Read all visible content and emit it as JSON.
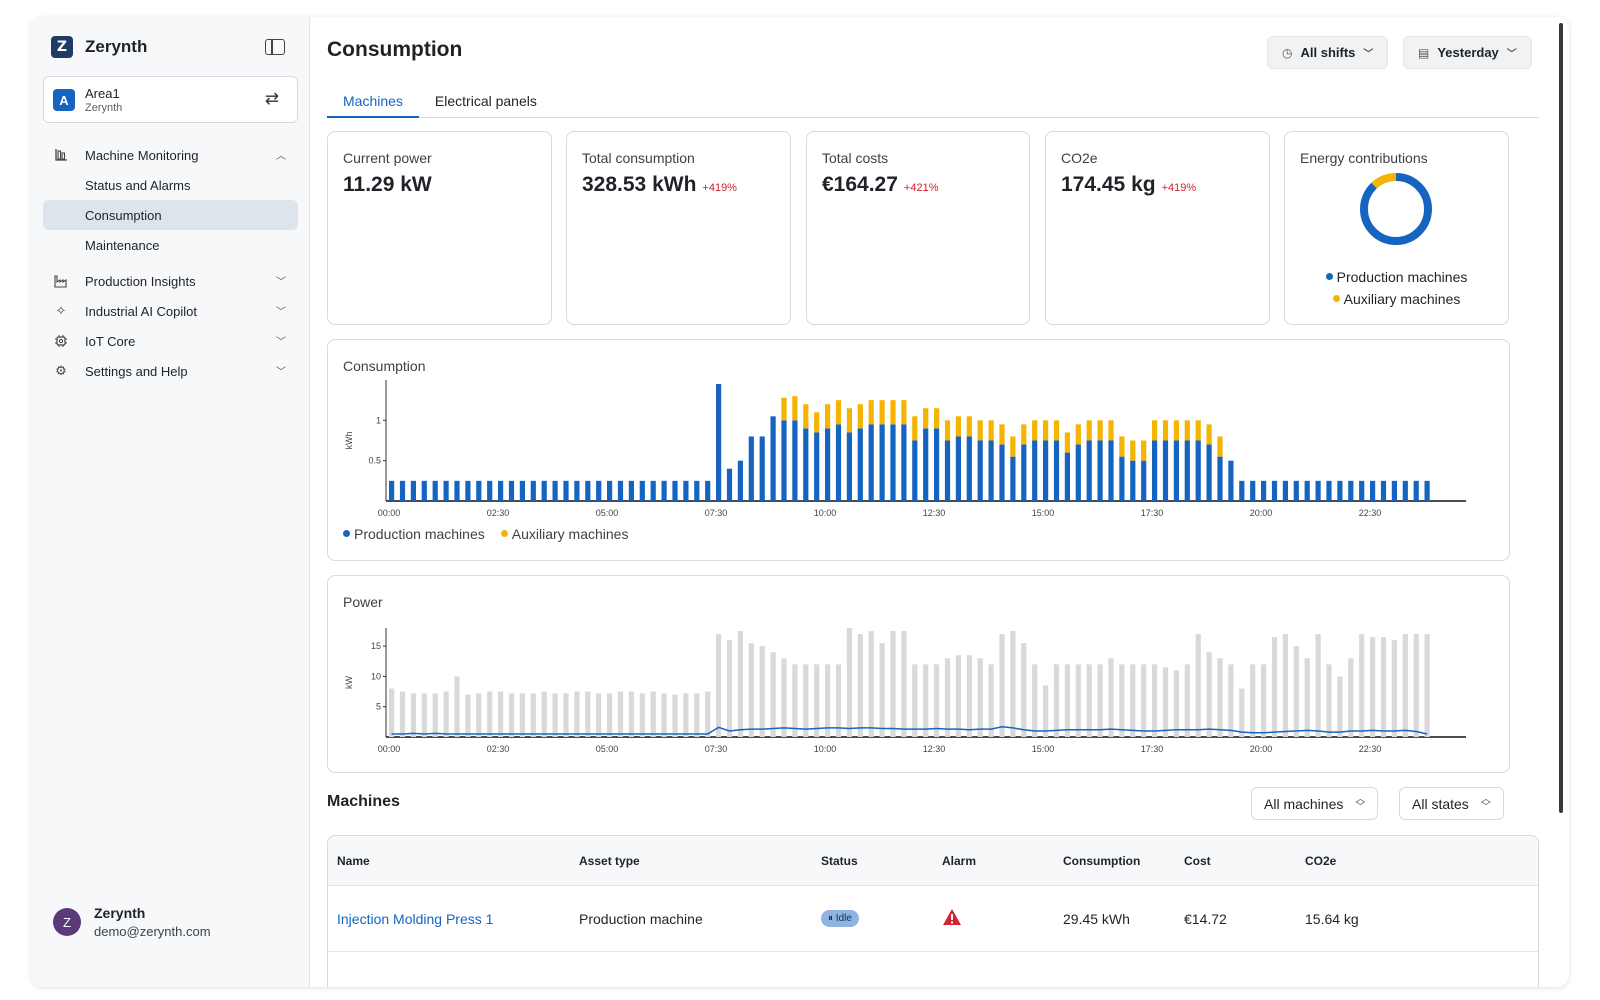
{
  "sidebar": {
    "brand": "Zerynth",
    "brand_logo_letter": "Z",
    "area": {
      "avatar": "A",
      "name": "Area1",
      "org": "Zerynth"
    },
    "nav": [
      {
        "label": "Machine Monitoring",
        "icon": "bar-chart-icon",
        "expanded": true,
        "children": [
          {
            "label": "Status and Alarms",
            "active": false
          },
          {
            "label": "Consumption",
            "active": true
          },
          {
            "label": "Maintenance",
            "active": false
          }
        ]
      },
      {
        "label": "Production Insights",
        "icon": "factory-icon",
        "expanded": false
      },
      {
        "label": "Industrial AI Copilot",
        "icon": "sparkle-icon",
        "expanded": false
      },
      {
        "label": "IoT Core",
        "icon": "chip-icon",
        "expanded": false
      },
      {
        "label": "Settings and Help",
        "icon": "gear-icon",
        "expanded": false
      }
    ],
    "user": {
      "avatar": "Z",
      "name": "Zerynth",
      "email": "demo@zerynth.com"
    }
  },
  "header": {
    "title": "Consumption",
    "shift_filter": "All shifts",
    "date_filter": "Yesterday"
  },
  "tabs": [
    {
      "label": "Machines",
      "active": true
    },
    {
      "label": "Electrical panels",
      "active": false
    }
  ],
  "kpis": {
    "current_power": {
      "label": "Current power",
      "value": "11.29 kW"
    },
    "total_consumption": {
      "label": "Total consumption",
      "value": "328.53 kWh",
      "delta": "+419%"
    },
    "total_costs": {
      "label": "Total costs",
      "value": "€164.27",
      "delta": "+421%"
    },
    "co2e": {
      "label": "CO2e",
      "value": "174.45 kg",
      "delta": "+419%"
    },
    "energy": {
      "label": "Energy contributions",
      "legend": [
        "Production machines",
        "Auxiliary machines"
      ]
    }
  },
  "colors": {
    "production": "#1565c0",
    "auxiliary": "#f4b400",
    "power_bar": "#d9d9d9",
    "delta": "#cf222e",
    "accent": "#1565c0"
  },
  "consumption_chart": {
    "title": "Consumption",
    "ylabel": "kWh",
    "yticks": [
      "1",
      "0.5"
    ],
    "xticks": [
      "00:00",
      "02:30",
      "05:00",
      "07:30",
      "10:00",
      "12:30",
      "15:00",
      "17:30",
      "20:00",
      "22:30"
    ],
    "legend": [
      "Production machines",
      "Auxiliary machines"
    ]
  },
  "power_chart": {
    "title": "Power",
    "ylabel": "kW",
    "yticks": [
      "15",
      "10",
      "5"
    ],
    "xticks": [
      "00:00",
      "02:30",
      "05:00",
      "07:30",
      "10:00",
      "12:30",
      "15:00",
      "17:30",
      "20:00",
      "22:30"
    ]
  },
  "chart_data": [
    {
      "type": "bar",
      "title": "Consumption",
      "xlabel": "",
      "ylabel": "kWh",
      "ylim": [
        0,
        1.5
      ],
      "x_start": "00:00",
      "x_interval": "15 min",
      "series": [
        {
          "name": "Production machines",
          "values": [
            0.25,
            0.25,
            0.25,
            0.25,
            0.25,
            0.25,
            0.25,
            0.25,
            0.25,
            0.25,
            0.25,
            0.25,
            0.25,
            0.25,
            0.25,
            0.25,
            0.25,
            0.25,
            0.25,
            0.25,
            0.25,
            0.25,
            0.25,
            0.25,
            0.25,
            0.25,
            0.25,
            0.25,
            0.25,
            0.25,
            1.45,
            0.4,
            0.5,
            0.8,
            0.8,
            1.05,
            1.0,
            1.0,
            0.9,
            0.85,
            0.9,
            0.95,
            0.85,
            0.9,
            0.95,
            0.95,
            0.95,
            0.95,
            0.75,
            0.9,
            0.9,
            0.75,
            0.8,
            0.8,
            0.75,
            0.75,
            0.7,
            0.55,
            0.7,
            0.75,
            0.75,
            0.75,
            0.6,
            0.7,
            0.75,
            0.75,
            0.75,
            0.55,
            0.5,
            0.5,
            0.75,
            0.75,
            0.75,
            0.75,
            0.75,
            0.7,
            0.55,
            0.5,
            0.25,
            0.25,
            0.25,
            0.25,
            0.25,
            0.25,
            0.25,
            0.25,
            0.25,
            0.25,
            0.25,
            0.25,
            0.25,
            0.25,
            0.25,
            0.25,
            0.25,
            0.25
          ]
        },
        {
          "name": "Auxiliary machines",
          "values": [
            0,
            0,
            0,
            0,
            0,
            0,
            0,
            0,
            0,
            0,
            0,
            0,
            0,
            0,
            0,
            0,
            0,
            0,
            0,
            0,
            0,
            0,
            0,
            0,
            0,
            0,
            0,
            0,
            0,
            0,
            0,
            0,
            0,
            0,
            0,
            0,
            0.28,
            0.3,
            0.3,
            0.25,
            0.3,
            0.3,
            0.3,
            0.3,
            0.3,
            0.3,
            0.3,
            0.3,
            0.3,
            0.25,
            0.25,
            0.25,
            0.25,
            0.25,
            0.25,
            0.25,
            0.25,
            0.25,
            0.25,
            0.25,
            0.25,
            0.25,
            0.25,
            0.25,
            0.25,
            0.25,
            0.25,
            0.25,
            0.25,
            0.25,
            0.25,
            0.25,
            0.25,
            0.25,
            0.25,
            0.25,
            0.25,
            0,
            0,
            0,
            0,
            0,
            0,
            0,
            0,
            0,
            0,
            0,
            0,
            0,
            0,
            0,
            0,
            0,
            0,
            0
          ]
        }
      ]
    },
    {
      "type": "bar",
      "title": "Power",
      "xlabel": "",
      "ylabel": "kW",
      "ylim": [
        0,
        18
      ],
      "x_start": "00:00",
      "x_interval": "15 min",
      "series": [
        {
          "name": "",
          "values": [
            8,
            7.5,
            7.2,
            7.2,
            7.2,
            7.5,
            10,
            7,
            7.2,
            7.5,
            7.5,
            7.2,
            7.2,
            7.2,
            7.5,
            7.2,
            7.2,
            7.5,
            7.5,
            7.2,
            7.2,
            7.5,
            7.5,
            7.2,
            7.5,
            7.2,
            7,
            7.2,
            7.2,
            7.5,
            17,
            16,
            17.5,
            15.5,
            15,
            14,
            13,
            12,
            12,
            12,
            12,
            12,
            18,
            17,
            17.5,
            15.5,
            17.5,
            17.5,
            12,
            12,
            12,
            13,
            13.5,
            13.5,
            13,
            12,
            17,
            17.5,
            15.5,
            12,
            8.5,
            12,
            12,
            12,
            12,
            12,
            13,
            12,
            12,
            12,
            12,
            11.5,
            11,
            12,
            17,
            14,
            13,
            12,
            8,
            12,
            12,
            16.5,
            17,
            15,
            13,
            17,
            12,
            10,
            13,
            17,
            16.5,
            16.5,
            16,
            17,
            17,
            17
          ]
        },
        {
          "name": "",
          "values": [
            0.5,
            0.5,
            0.6,
            0.5,
            0.6,
            0.5,
            0.5,
            0.5,
            0.5,
            0.5,
            0.5,
            0.5,
            0.5,
            0.5,
            0.5,
            0.5,
            0.5,
            0.5,
            0.5,
            0.5,
            0.5,
            0.5,
            0.5,
            0.5,
            0.5,
            0.5,
            0.5,
            0.5,
            0.5,
            0.5,
            1.6,
            1.0,
            1.2,
            1.3,
            1.3,
            1.4,
            1.5,
            1.4,
            1.3,
            1.4,
            1.5,
            1.5,
            1.4,
            1.5,
            1.5,
            1.4,
            1.4,
            1.3,
            1.3,
            1.3,
            1.4,
            1.3,
            1.3,
            1.2,
            1.3,
            1.3,
            1.7,
            1.5,
            1.2,
            1.0,
            1.0,
            1.1,
            1.2,
            1.2,
            1.2,
            1.2,
            1.3,
            1.2,
            1.1,
            1.0,
            1.0,
            1.1,
            1.2,
            1.2,
            1.2,
            1.3,
            1.2,
            1.1,
            0.8,
            0.7,
            0.7,
            0.8,
            0.9,
            1.0,
            1.1,
            1.0,
            0.8,
            0.8,
            1.0,
            1.0,
            1.1,
            1.0,
            1.0,
            1.1,
            0.9,
            0.5
          ]
        }
      ]
    }
  ],
  "donut_data": {
    "production": 88,
    "auxiliary": 12
  },
  "machines": {
    "title": "Machines",
    "filter_machines": "All machines",
    "filter_states": "All states",
    "columns": [
      "Name",
      "Asset type",
      "Status",
      "Alarm",
      "Consumption",
      "Cost",
      "CO2e"
    ],
    "rows": [
      {
        "name": "Injection Molding Press 1",
        "asset_type": "Production machine",
        "status": "Idle",
        "alarm": "warning-icon",
        "consumption": "29.45 kWh",
        "cost": "€14.72",
        "co2e": "15.64 kg"
      }
    ]
  }
}
